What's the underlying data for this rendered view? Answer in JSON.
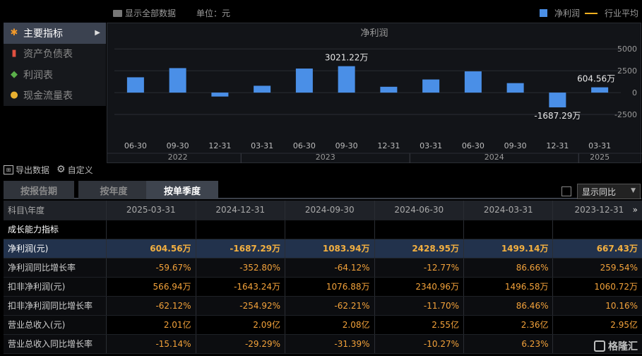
{
  "topbar": {
    "show_all": "显示全部数据",
    "unit": "单位：元",
    "legend_net": "净利润",
    "legend_avg": "行业平均"
  },
  "nav": {
    "items": [
      {
        "label": "主要指标",
        "icon": "star-icon",
        "active": true
      },
      {
        "label": "资产负债表",
        "icon": "doc-icon",
        "active": false
      },
      {
        "label": "利润表",
        "icon": "cube-icon",
        "active": false
      },
      {
        "label": "现金流量表",
        "icon": "coins-icon",
        "active": false
      }
    ]
  },
  "chart_data": {
    "type": "bar",
    "title": "净利润",
    "categories": [
      "06-30",
      "09-30",
      "12-31",
      "03-31",
      "06-30",
      "09-30",
      "12-31",
      "03-31",
      "06-30",
      "09-30",
      "12-31",
      "03-31"
    ],
    "year_groups": [
      {
        "label": "2022",
        "span": 3
      },
      {
        "label": "2023",
        "span": 4
      },
      {
        "label": "2024",
        "span": 4
      },
      {
        "label": "2025",
        "span": 1
      }
    ],
    "values": [
      1750,
      2800,
      -450,
      780,
      2750,
      3021.22,
      667.43,
      1499.14,
      2428.95,
      1083.94,
      -1687.29,
      604.56
    ],
    "data_labels": [
      {
        "index": 5,
        "text": "3021.22万"
      },
      {
        "index": 10,
        "text": "-1687.29万"
      },
      {
        "index": 11,
        "text": "604.56万"
      }
    ],
    "yticks": [
      5000,
      2500,
      0,
      -2500
    ],
    "ylim": [
      -5000,
      5500
    ],
    "color": "#4a8fe7"
  },
  "toolbar": {
    "export": "导出数据",
    "custom": "自定义"
  },
  "tabs": [
    "按报告期",
    "按年度",
    "按单季度"
  ],
  "compare": {
    "label": "显示同比"
  },
  "table": {
    "header_first": "科目\\年度",
    "columns": [
      "2025-03-31",
      "2024-12-31",
      "2024-09-30",
      "2024-06-30",
      "2024-03-31",
      "2023-12-31"
    ],
    "rows": [
      {
        "label": "成长能力指标",
        "type": "sec",
        "values": [
          "",
          "",
          "",
          "",
          "",
          ""
        ]
      },
      {
        "label": "净利润(元)",
        "type": "hl",
        "values": [
          "604.56万",
          "-1687.29万",
          "1083.94万",
          "2428.95万",
          "1499.14万",
          "667.43万"
        ]
      },
      {
        "label": "净利润同比增长率",
        "type": "odd",
        "values": [
          "-59.67%",
          "-352.80%",
          "-64.12%",
          "-12.77%",
          "86.66%",
          "259.54%"
        ]
      },
      {
        "label": "扣非净利润(元)",
        "type": "",
        "values": [
          "566.94万",
          "-1643.24万",
          "1076.88万",
          "2340.96万",
          "1496.58万",
          "1060.72万"
        ]
      },
      {
        "label": "扣非净利润同比增长率",
        "type": "odd",
        "values": [
          "-62.12%",
          "-254.92%",
          "-62.21%",
          "-11.70%",
          "86.46%",
          "10.16%"
        ]
      },
      {
        "label": "营业总收入(元)",
        "type": "",
        "values": [
          "2.01亿",
          "2.09亿",
          "2.08亿",
          "2.55亿",
          "2.36亿",
          "2.95亿"
        ]
      },
      {
        "label": "营业总收入同比增长率",
        "type": "odd",
        "values": [
          "-15.14%",
          "-29.29%",
          "-31.39%",
          "-10.27%",
          "6.23%",
          ""
        ]
      }
    ]
  },
  "watermark": "格隆汇"
}
